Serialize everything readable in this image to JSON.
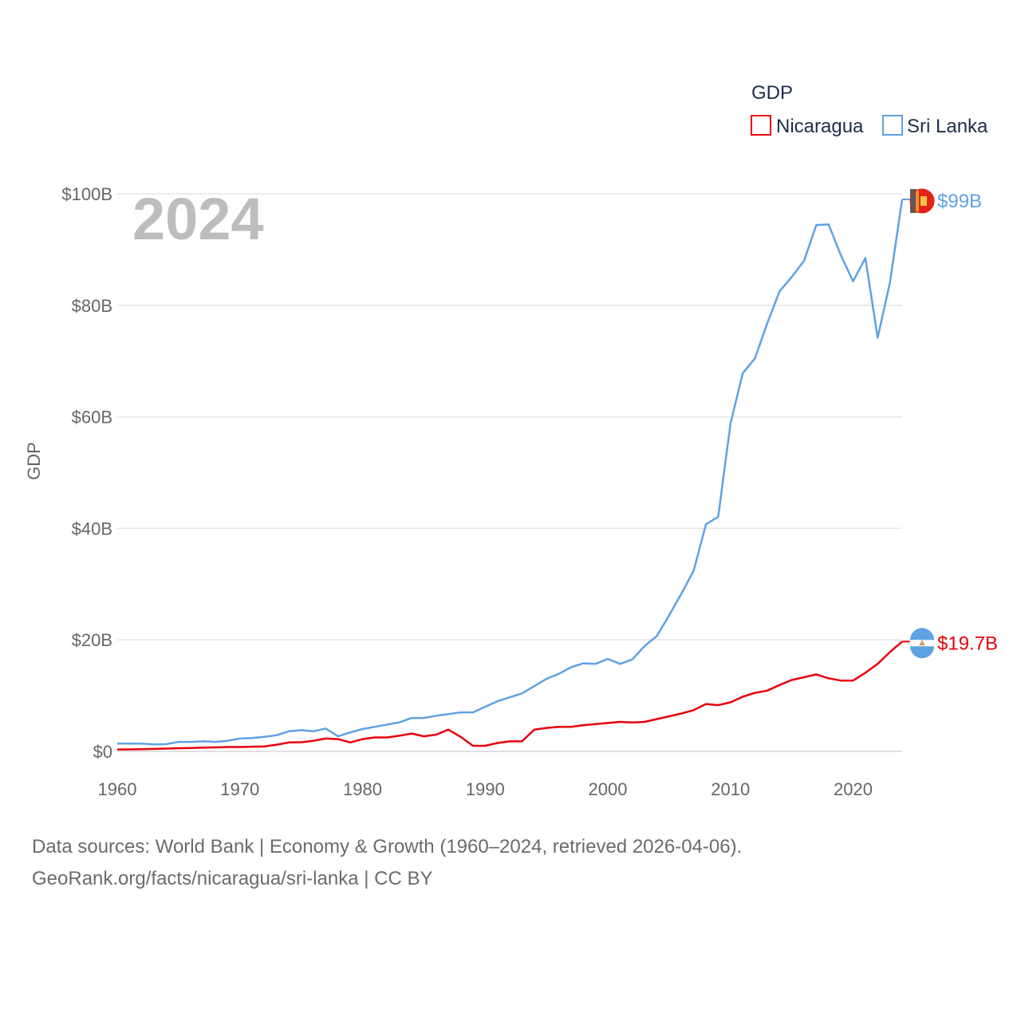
{
  "chart_data": {
    "type": "line",
    "title": "",
    "year_label": "2024",
    "ylabel": "GDP",
    "xlabel": "",
    "xlim": [
      1960,
      2024
    ],
    "ylim": [
      0,
      100
    ],
    "y_unit": "billion USD",
    "x_ticks": [
      "1960",
      "1970",
      "1980",
      "1990",
      "2000",
      "2010",
      "2020"
    ],
    "y_ticks": [
      {
        "value": 0,
        "label": "$0"
      },
      {
        "value": 20,
        "label": "$20B"
      },
      {
        "value": 40,
        "label": "$40B"
      },
      {
        "value": 60,
        "label": "$60B"
      },
      {
        "value": 80,
        "label": "$80B"
      },
      {
        "value": 100,
        "label": "$100B"
      }
    ],
    "legend": {
      "title": "GDP",
      "position": "top-right",
      "entries": [
        "Nicaragua",
        "Sri Lanka"
      ]
    },
    "x": [
      1960,
      1961,
      1962,
      1963,
      1964,
      1965,
      1966,
      1967,
      1968,
      1969,
      1970,
      1971,
      1972,
      1973,
      1974,
      1975,
      1976,
      1977,
      1978,
      1979,
      1980,
      1981,
      1982,
      1983,
      1984,
      1985,
      1986,
      1987,
      1988,
      1989,
      1990,
      1991,
      1992,
      1993,
      1994,
      1995,
      1996,
      1997,
      1998,
      1999,
      2000,
      2001,
      2002,
      2003,
      2004,
      2005,
      2006,
      2007,
      2008,
      2009,
      2010,
      2011,
      2012,
      2013,
      2014,
      2015,
      2016,
      2017,
      2018,
      2019,
      2020,
      2021,
      2022,
      2023,
      2024
    ],
    "series": [
      {
        "name": "Nicaragua",
        "color": "#e8000b",
        "end_label": "$19.7B",
        "values": [
          0.34,
          0.36,
          0.4,
          0.44,
          0.5,
          0.57,
          0.62,
          0.67,
          0.72,
          0.78,
          0.78,
          0.84,
          0.9,
          1.2,
          1.6,
          1.65,
          1.9,
          2.3,
          2.2,
          1.6,
          2.2,
          2.5,
          2.5,
          2.8,
          3.2,
          2.7,
          3.0,
          3.9,
          2.6,
          1.0,
          1.0,
          1.5,
          1.8,
          1.8,
          3.9,
          4.2,
          4.4,
          4.4,
          4.7,
          4.9,
          5.1,
          5.3,
          5.2,
          5.3,
          5.8,
          6.3,
          6.8,
          7.4,
          8.5,
          8.3,
          8.8,
          9.8,
          10.5,
          10.9,
          11.9,
          12.8,
          13.3,
          13.8,
          13.1,
          12.7,
          12.7,
          14.1,
          15.7,
          17.8,
          19.7
        ]
      },
      {
        "name": "Sri Lanka",
        "color": "#5fa2e3",
        "end_label": "$99B",
        "values": [
          1.4,
          1.4,
          1.4,
          1.25,
          1.3,
          1.7,
          1.7,
          1.8,
          1.7,
          1.9,
          2.3,
          2.4,
          2.6,
          2.9,
          3.6,
          3.8,
          3.6,
          4.1,
          2.7,
          3.4,
          4.0,
          4.4,
          4.8,
          5.2,
          6.0,
          6.0,
          6.4,
          6.7,
          7.0,
          7.0,
          8.0,
          9.0,
          9.7,
          10.4,
          11.7,
          13.0,
          13.9,
          15.1,
          15.8,
          15.7,
          16.6,
          15.7,
          16.5,
          18.9,
          20.7,
          24.4,
          28.3,
          32.4,
          40.7,
          42.1,
          58.8,
          67.8,
          70.5,
          76.8,
          82.5,
          85.1,
          88.0,
          94.4,
          94.5,
          89.0,
          84.3,
          88.5,
          74.2,
          84.0,
          99.0
        ]
      }
    ]
  },
  "footer": {
    "line1": "Data sources: World Bank | Economy & Growth (1960–2024, retrieved 2026-04-06).",
    "line2": "GeoRank.org/facts/nicaragua/sri-lanka | CC BY"
  }
}
